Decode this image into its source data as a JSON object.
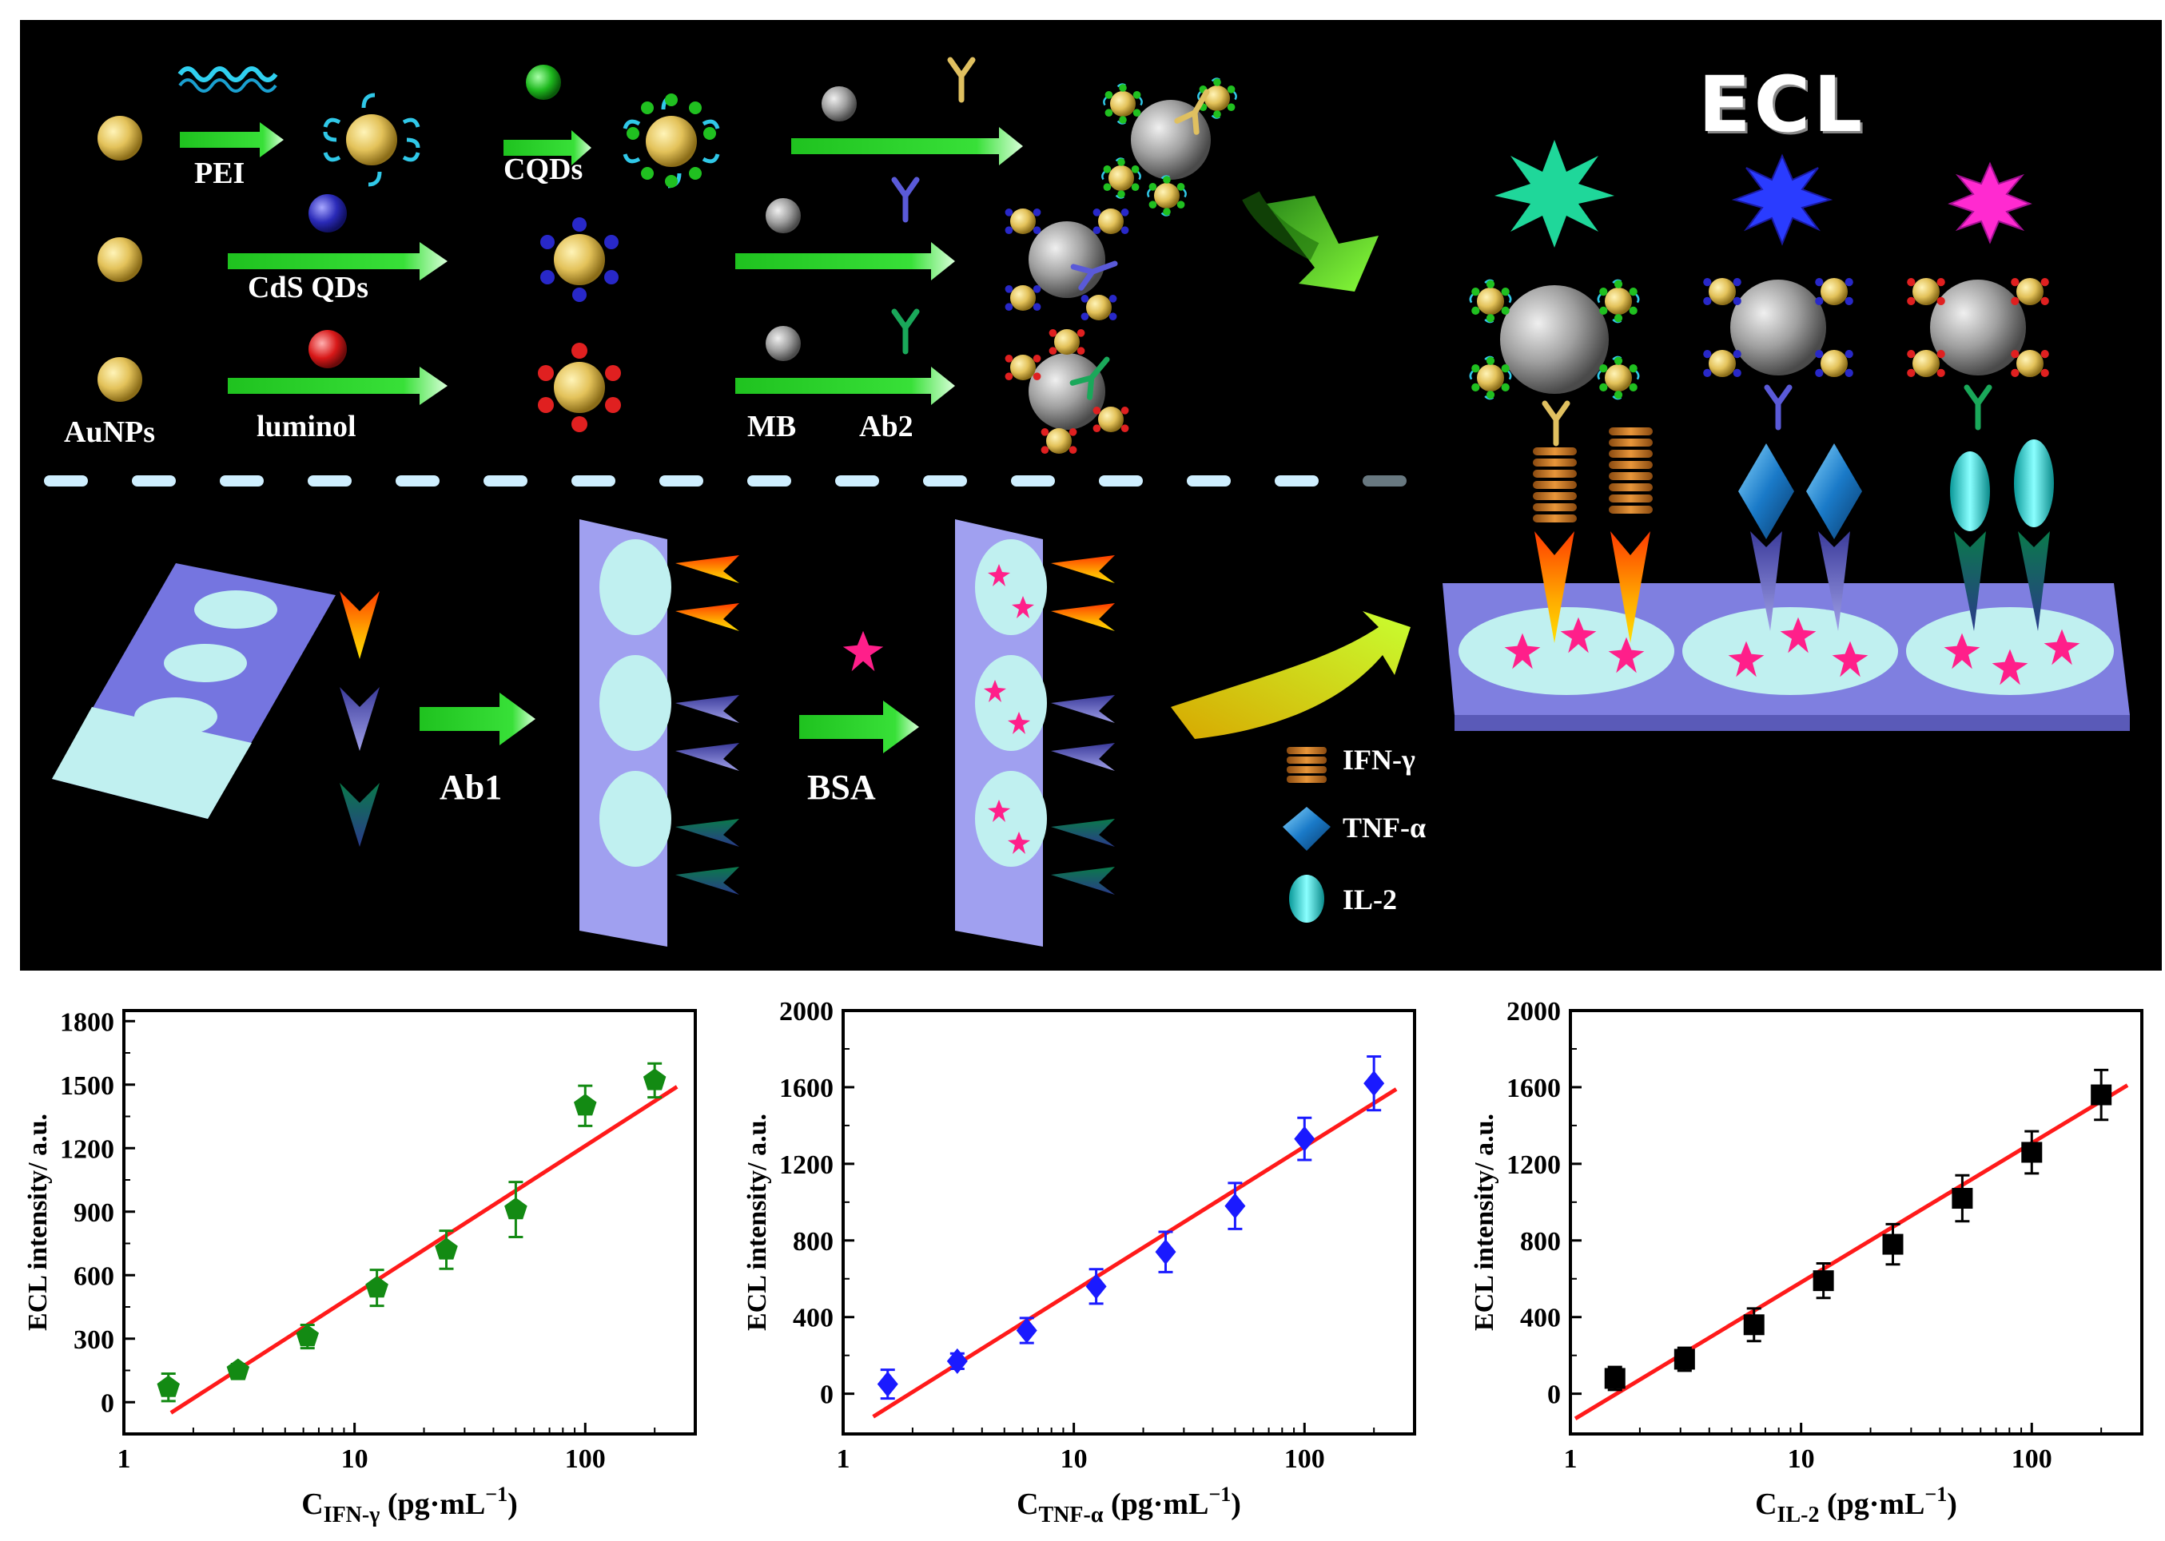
{
  "scheme": {
    "reagents": {
      "pei": "PEI",
      "cqds": "CQDs",
      "cds": "CdS QDs",
      "luminol": "luminol",
      "aunps": "AuNPs",
      "mb": "MB",
      "ab2": "Ab2",
      "ab1": "Ab1",
      "bsa": "BSA"
    },
    "ecl_title": "ECL",
    "legend": [
      {
        "label": "IFN-γ",
        "icon": "spring-icon"
      },
      {
        "label": "TNF-α",
        "icon": "diamond-icon"
      },
      {
        "label": "IL-2",
        "icon": "capsule-icon"
      }
    ],
    "colors": {
      "background": "#000000",
      "gold": "#e8c860",
      "gray_bead": "#9a9a9a",
      "green_arrow": "#2ad12a",
      "blue": "#3a3ad8",
      "red": "#e02020",
      "electrode": "#7f7fe0",
      "bsa_star": "#ff2a8a",
      "ecl_green": "#1fd79a",
      "ecl_blue": "#2a3cff",
      "ecl_magenta": "#ff2ad0"
    }
  },
  "chart_data": [
    {
      "type": "scatter",
      "xlabel_main": "C",
      "xlabel_sub": "IFN-γ",
      "xlabel_unit": " (pg·mL",
      "xlabel_exp": "−1",
      "xlabel_close": ")",
      "ylabel": "ECL intensity/ a.u.",
      "x_scale": "log",
      "xlim": [
        1,
        300
      ],
      "ylim": [
        -150,
        1850
      ],
      "yticks": [
        0,
        300,
        600,
        900,
        1200,
        1500,
        1800
      ],
      "xticks": [
        1,
        10,
        100
      ],
      "marker": "pentagon",
      "color": "#138a13",
      "x": [
        1.56,
        3.125,
        6.25,
        12.5,
        25,
        50,
        100,
        200
      ],
      "y": [
        70,
        150,
        310,
        540,
        720,
        910,
        1400,
        1520
      ],
      "err": [
        65,
        30,
        55,
        85,
        90,
        130,
        95,
        80
      ],
      "fit": {
        "x": [
          1.6,
          250
        ],
        "y": [
          -50,
          1490
        ],
        "color": "#ff1a1a"
      }
    },
    {
      "type": "scatter",
      "xlabel_main": "C",
      "xlabel_sub": "TNF-α",
      "xlabel_unit": " (pg·mL",
      "xlabel_exp": "−1",
      "xlabel_close": ")",
      "ylabel": "ECL intensity/ a.u.",
      "x_scale": "log",
      "xlim": [
        1,
        300
      ],
      "ylim": [
        -210,
        2000
      ],
      "yticks": [
        0,
        400,
        800,
        1200,
        1600,
        2000
      ],
      "xticks": [
        1,
        10,
        100
      ],
      "marker": "diamond",
      "color": "#1a1aff",
      "x": [
        1.56,
        3.125,
        6.25,
        12.5,
        25,
        50,
        100,
        200
      ],
      "y": [
        50,
        170,
        330,
        560,
        740,
        980,
        1330,
        1620
      ],
      "err": [
        75,
        40,
        65,
        90,
        105,
        120,
        110,
        140
      ],
      "fit": {
        "x": [
          1.35,
          250
        ],
        "y": [
          -120,
          1590
        ],
        "color": "#ff1a1a"
      }
    },
    {
      "type": "scatter",
      "xlabel_main": "C",
      "xlabel_sub": "IL-2",
      "xlabel_unit": " (pg·mL",
      "xlabel_exp": "−1",
      "xlabel_close": ")",
      "ylabel": "ECL intensity/ a.u.",
      "x_scale": "log",
      "xlim": [
        1,
        300
      ],
      "ylim": [
        -210,
        2000
      ],
      "yticks": [
        0,
        400,
        800,
        1200,
        1600,
        2000
      ],
      "xticks": [
        1,
        10,
        100
      ],
      "marker": "square",
      "color": "#000000",
      "x": [
        1.56,
        3.125,
        6.25,
        12.5,
        25,
        50,
        100,
        200
      ],
      "y": [
        80,
        180,
        360,
        590,
        780,
        1020,
        1260,
        1560
      ],
      "err": [
        60,
        60,
        85,
        90,
        105,
        120,
        110,
        130
      ],
      "fit": {
        "x": [
          1.05,
          260
        ],
        "y": [
          -130,
          1610
        ],
        "color": "#ff1a1a"
      }
    }
  ]
}
